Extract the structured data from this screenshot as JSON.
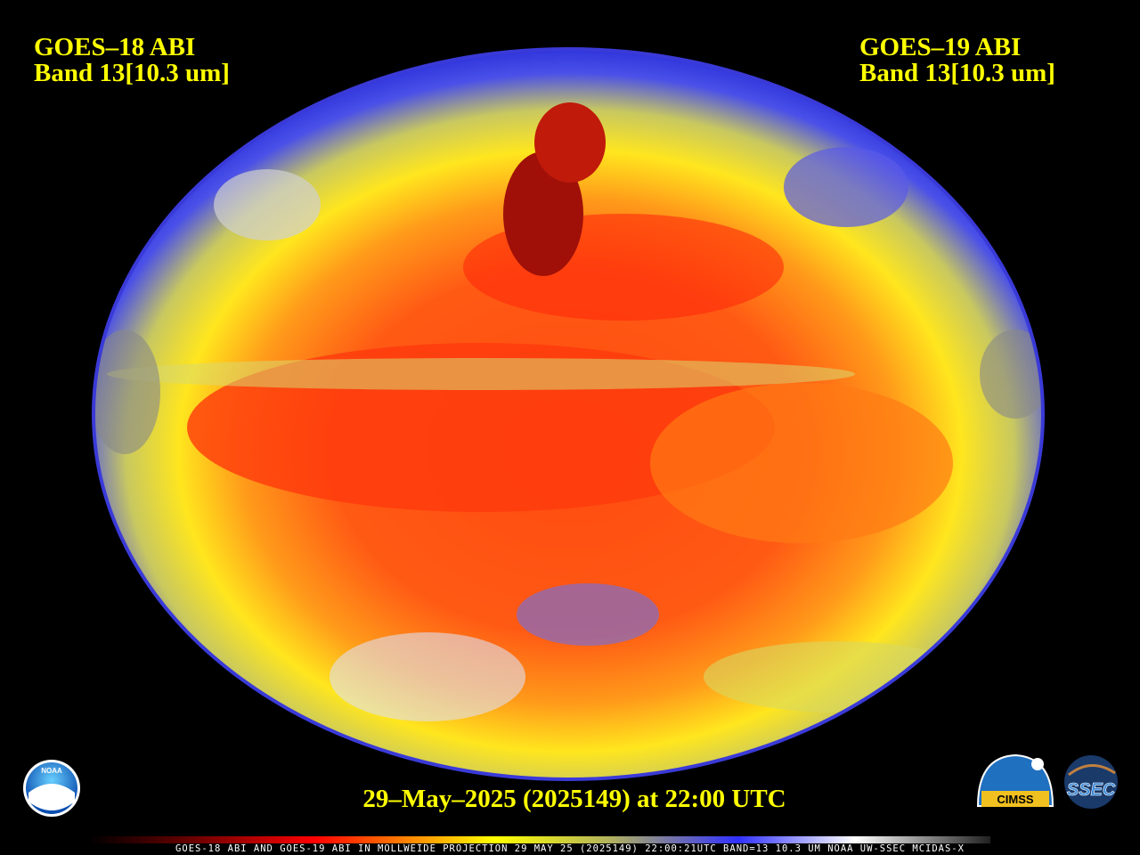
{
  "header": {
    "left": {
      "satellite": "GOES–18 ABI",
      "band": "Band 13[10.3 um]"
    },
    "right": {
      "satellite": "GOES–19 ABI",
      "band": "Band 13[10.3 um]"
    }
  },
  "footer": {
    "timestamp": "29–May–2025 (2025149) at 22:00 UTC",
    "caption": "GOES-18 ABI AND GOES-19 ABI IN MOLLWEIDE PROJECTION 29 MAY 25 (2025149) 22:00:21UTC BAND=13 10.3 UM NOAA UW-SSEC MCIDAS-X"
  },
  "logos": {
    "noaa": "NOAA",
    "cimss": "CIMSS",
    "ssec": "SSEC"
  }
}
